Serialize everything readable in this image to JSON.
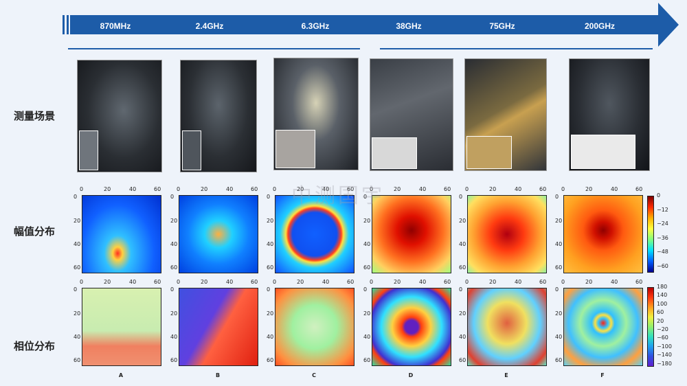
{
  "frequencies": [
    "870MHz",
    "2.4GHz",
    "6.3GHz",
    "38GHz",
    "75GHz",
    "200GHz"
  ],
  "row_labels": {
    "scene": "测量场景",
    "amplitude": "幅值分布",
    "phase": "相位分布"
  },
  "axis_ticks": [
    "0",
    "20",
    "40",
    "60"
  ],
  "column_letters": [
    "A",
    "B",
    "C",
    "D",
    "E",
    "F"
  ],
  "amplitude_colorbar_ticks": [
    "0",
    "−12",
    "−24",
    "−36",
    "−48",
    "−60"
  ],
  "phase_colorbar_ticks": [
    "180",
    "140",
    "100",
    "60",
    "20",
    "−20",
    "−60",
    "−100",
    "−140",
    "−180"
  ],
  "watermark": "中测国宇",
  "colors": {
    "arrow": "#1d5ca8",
    "background": "#eef3fa"
  }
}
